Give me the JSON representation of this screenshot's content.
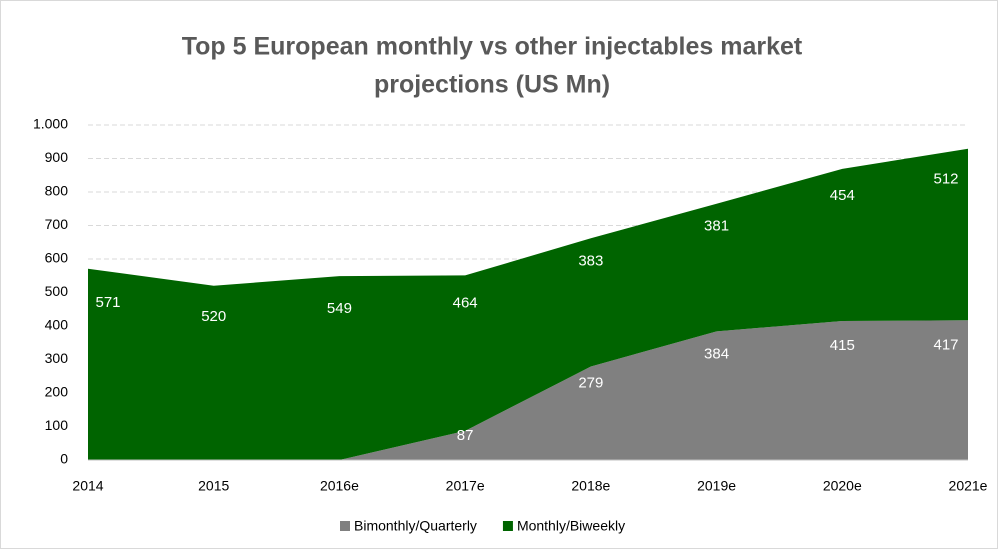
{
  "chart_data": {
    "type": "stacked_area",
    "title": [
      "Top 5 European monthly vs other injectables market",
      "projections (US Mn)"
    ],
    "categories": [
      "2014",
      "2015",
      "2016e",
      "2017e",
      "2018e",
      "2019e",
      "2020e",
      "2021e"
    ],
    "series": [
      {
        "name": "Bimonthly/Quarterly",
        "color": "#808080",
        "values": [
          0,
          0,
          0,
          87,
          279,
          384,
          415,
          417
        ],
        "value_labels": [
          null,
          null,
          null,
          "87",
          "279",
          "384",
          "415",
          "417"
        ]
      },
      {
        "name": "Monthly/Biweekly",
        "color": "#006400",
        "values": [
          571,
          520,
          549,
          464,
          383,
          381,
          454,
          512
        ]
      }
    ],
    "ylim": [
      0,
      1000
    ],
    "yticks": [
      0,
      100,
      200,
      300,
      400,
      500,
      600,
      700,
      800,
      900,
      {
        "value": 1000,
        "label": "1.000"
      }
    ],
    "grid": true,
    "legend": "bottom"
  }
}
